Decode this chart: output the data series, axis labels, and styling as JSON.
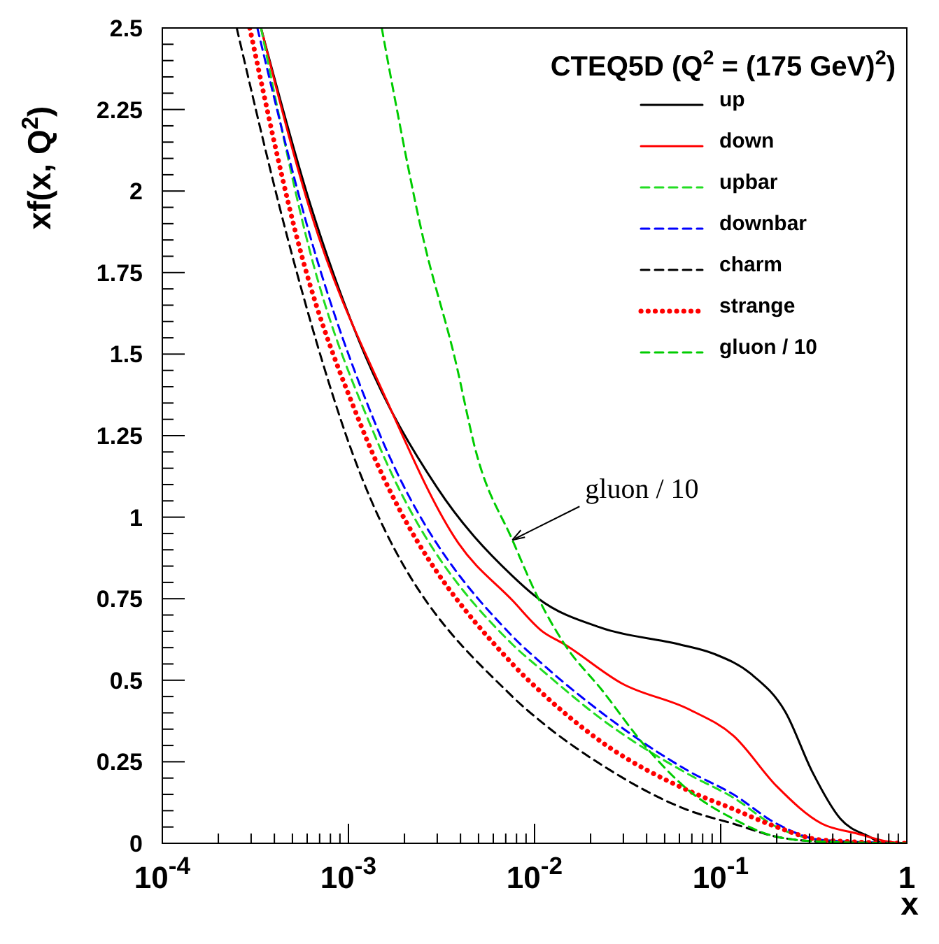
{
  "chart_data": {
    "type": "line",
    "title": "CTEQ5D (Q$^{2}$ = (175 GeV)$^{2}$)",
    "xlabel": "x",
    "ylabel": "xf(x, Q$^{2}$)",
    "log": "x",
    "legend": "top right",
    "marker": "none",
    "xlim": [
      0.0001,
      1
    ],
    "ylim": [
      0,
      2.5
    ],
    "xticks": [
      {
        "value": 0.0001,
        "label": "10$^{-4}$"
      },
      {
        "value": 0.0002,
        "label": null
      },
      {
        "value": 0.0003,
        "label": null
      },
      {
        "value": 0.0004,
        "label": null
      },
      {
        "value": 0.0005,
        "label": null
      },
      {
        "value": 0.0006,
        "label": null
      },
      {
        "value": 0.0007,
        "label": null
      },
      {
        "value": 0.0008,
        "label": null
      },
      {
        "value": 0.0009,
        "label": null
      },
      {
        "value": 0.001,
        "label": "10$^{-3}$"
      },
      {
        "value": 0.002,
        "label": null
      },
      {
        "value": 0.003,
        "label": null
      },
      {
        "value": 0.004,
        "label": null
      },
      {
        "value": 0.005,
        "label": null
      },
      {
        "value": 0.006,
        "label": null
      },
      {
        "value": 0.007,
        "label": null
      },
      {
        "value": 0.008,
        "label": null
      },
      {
        "value": 0.009,
        "label": null
      },
      {
        "value": 0.01,
        "label": "10$^{-2}$"
      },
      {
        "value": 0.02,
        "label": null
      },
      {
        "value": 0.03,
        "label": null
      },
      {
        "value": 0.04,
        "label": null
      },
      {
        "value": 0.05,
        "label": null
      },
      {
        "value": 0.06,
        "label": null
      },
      {
        "value": 0.07,
        "label": null
      },
      {
        "value": 0.08,
        "label": null
      },
      {
        "value": 0.09,
        "label": null
      },
      {
        "value": 0.1,
        "label": "10$^{-1}$"
      },
      {
        "value": 0.2,
        "label": null
      },
      {
        "value": 0.3,
        "label": null
      },
      {
        "value": 0.4,
        "label": null
      },
      {
        "value": 0.5,
        "label": null
      },
      {
        "value": 0.6,
        "label": null
      },
      {
        "value": 0.7,
        "label": null
      },
      {
        "value": 0.8,
        "label": null
      },
      {
        "value": 0.9,
        "label": null
      },
      1
    ],
    "yticks": [
      0,
      {
        "value": 0.05,
        "label": null
      },
      {
        "value": 0.1,
        "label": null
      },
      {
        "value": 0.15,
        "label": null
      },
      {
        "value": 0.2,
        "label": null
      },
      0.25,
      {
        "value": 0.3,
        "label": null
      },
      {
        "value": 0.35,
        "label": null
      },
      {
        "value": 0.4,
        "label": null
      },
      {
        "value": 0.45,
        "label": null
      },
      0.5,
      {
        "value": 0.55,
        "label": null
      },
      {
        "value": 0.6,
        "label": null
      },
      {
        "value": 0.65,
        "label": null
      },
      {
        "value": 0.7,
        "label": null
      },
      0.75,
      {
        "value": 0.8,
        "label": null
      },
      {
        "value": 0.85,
        "label": null
      },
      {
        "value": 0.9,
        "label": null
      },
      {
        "value": 0.95,
        "label": null
      },
      1,
      {
        "value": 1.05,
        "label": null
      },
      {
        "value": 1.1,
        "label": null
      },
      {
        "value": 1.15,
        "label": null
      },
      {
        "value": 1.2,
        "label": null
      },
      1.25,
      {
        "value": 1.3,
        "label": null
      },
      {
        "value": 1.35,
        "label": null
      },
      {
        "value": 1.4,
        "label": null
      },
      {
        "value": 1.45,
        "label": null
      },
      1.5,
      {
        "value": 1.55,
        "label": null
      },
      {
        "value": 1.6,
        "label": null
      },
      {
        "value": 1.65,
        "label": null
      },
      {
        "value": 1.7,
        "label": null
      },
      1.75,
      {
        "value": 1.8,
        "label": null
      },
      {
        "value": 1.85,
        "label": null
      },
      {
        "value": 1.9,
        "label": null
      },
      {
        "value": 1.95,
        "label": null
      },
      2,
      {
        "value": 2.05,
        "label": null
      },
      {
        "value": 2.1,
        "label": null
      },
      {
        "value": 2.15,
        "label": null
      },
      {
        "value": 2.2,
        "label": null
      },
      2.25,
      {
        "value": 2.3,
        "label": null
      },
      {
        "value": 2.35,
        "label": null
      },
      {
        "value": 2.4,
        "label": null
      },
      {
        "value": 2.45,
        "label": null
      },
      2.5
    ],
    "annotations": [
      {
        "text": "gluon / 10",
        "x": 0.0076,
        "y": 0.93
      }
    ],
    "series": [
      {
        "name": "up",
        "color": "#000000",
        "line_style": "solid",
        "x": [
          0.000339,
          0.000631,
          0.0012,
          0.003,
          0.0076,
          0.0105,
          0.023,
          0.06,
          0.093,
          0.145,
          0.224,
          0.31,
          0.44,
          0.63,
          0.75,
          1
        ],
        "values": [
          2.5,
          1.95,
          1.51,
          1.09,
          0.82,
          0.75,
          0.66,
          0.61,
          0.58,
          0.52,
          0.4,
          0.22,
          0.075,
          0.02,
          0,
          0
        ]
      },
      {
        "name": "down",
        "color": "#ff0000",
        "line_style": "solid",
        "x": [
          0.000339,
          0.000631,
          0.0016,
          0.0039,
          0.0076,
          0.011,
          0.0145,
          0.0295,
          0.068,
          0.117,
          0.2,
          0.35,
          0.54,
          0.8,
          1
        ],
        "values": [
          2.5,
          1.93,
          1.36,
          0.92,
          0.745,
          0.65,
          0.61,
          0.49,
          0.41,
          0.33,
          0.175,
          0.06,
          0.03,
          0.005,
          0
        ]
      },
      {
        "name": "upbar",
        "color": "#22dd22",
        "line_style": "dashed",
        "x": [
          0.000339,
          0.000631,
          0.00141,
          0.0076,
          0.011,
          0.023,
          0.068,
          0.117,
          0.2,
          0.35,
          1
        ],
        "values": [
          2.5,
          1.8,
          1.24,
          0.61,
          0.53,
          0.38,
          0.21,
          0.14,
          0.05,
          0.01,
          0
        ]
      },
      {
        "name": "downbar",
        "color": "#0000ff",
        "line_style": "dashed",
        "x": [
          0.000324,
          0.000631,
          0.00141,
          0.0076,
          0.011,
          0.023,
          0.068,
          0.117,
          0.2,
          0.35,
          1
        ],
        "values": [
          2.5,
          1.85,
          1.28,
          0.635,
          0.55,
          0.4,
          0.22,
          0.15,
          0.06,
          0.01,
          0
        ]
      },
      {
        "name": "charm",
        "color": "#000000",
        "line_style": "dashed",
        "x": [
          0.000251,
          0.0005,
          0.000933,
          0.0076,
          0.011,
          0.023,
          0.068,
          0.117,
          0.2,
          0.35,
          1
        ],
        "values": [
          2.5,
          1.8,
          1.28,
          0.45,
          0.37,
          0.24,
          0.1,
          0.06,
          0.02,
          0.005,
          0
        ]
      },
      {
        "name": "strange",
        "color": "#ff0000",
        "line_style": "dotted",
        "x": [
          0.000295,
          0.000562,
          0.00117,
          0.0076,
          0.011,
          0.023,
          0.068,
          0.117,
          0.2,
          0.35,
          1
        ],
        "values": [
          2.5,
          1.8,
          1.28,
          0.55,
          0.46,
          0.31,
          0.16,
          0.105,
          0.05,
          0.01,
          0
        ]
      },
      {
        "name": "gluon / 10",
        "color": "#00cc00",
        "line_style": "dashed",
        "x": [
          0.00151,
          0.00178,
          0.00251,
          0.00372,
          0.0049,
          0.0076,
          0.0105,
          0.0145,
          0.023,
          0.039,
          0.068,
          0.117,
          0.2,
          0.35,
          1
        ],
        "values": [
          2.5,
          2.28,
          1.86,
          1.49,
          1.19,
          0.93,
          0.75,
          0.61,
          0.47,
          0.3,
          0.16,
          0.075,
          0.02,
          0.005,
          0
        ]
      }
    ]
  }
}
